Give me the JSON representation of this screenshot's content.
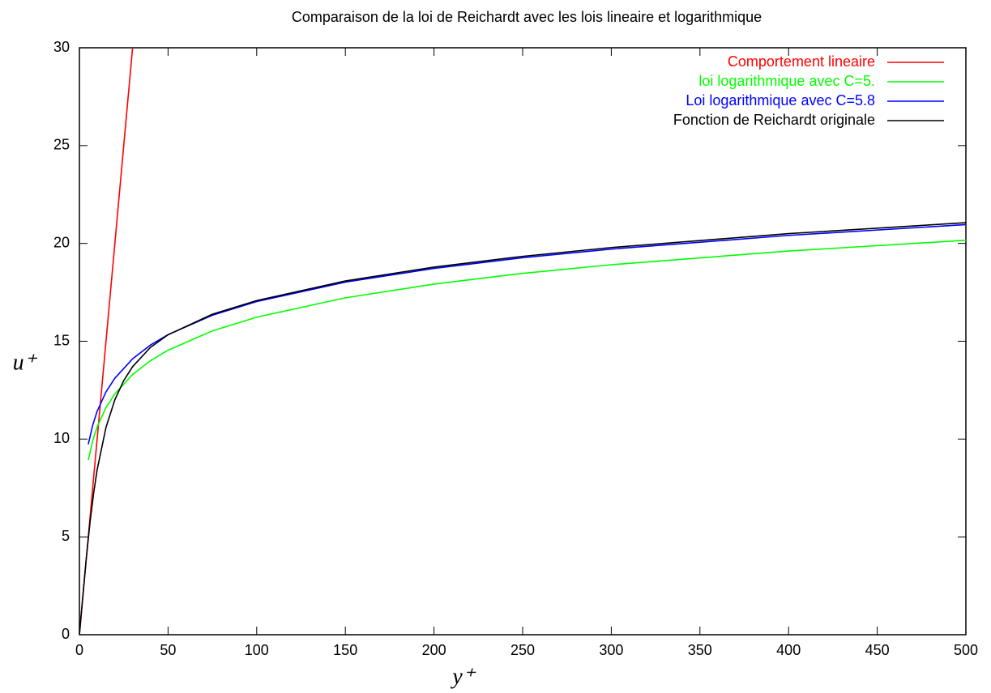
{
  "chart_data": {
    "type": "line",
    "title": "Comparaison de la loi de Reichardt avec les lois lineaire et logarithmique",
    "xlabel": "y⁺",
    "ylabel": "u⁺",
    "xlim": [
      0,
      500
    ],
    "ylim": [
      0,
      30
    ],
    "xticks": [
      0,
      50,
      100,
      150,
      200,
      250,
      300,
      350,
      400,
      450,
      500
    ],
    "yticks": [
      0,
      5,
      10,
      15,
      20,
      25,
      30
    ],
    "legend": "top-right",
    "series": [
      {
        "name": "Comportement lineaire",
        "color": "#ff0000",
        "x": [
          0,
          30
        ],
        "values": [
          0,
          30
        ]
      },
      {
        "name": "loi logarithmique avec C=5.",
        "color": "#00ff00",
        "x": [
          5,
          7.5,
          10,
          15,
          20,
          30,
          40,
          50,
          75,
          100,
          150,
          200,
          250,
          300,
          400,
          500
        ],
        "values": [
          8.93,
          9.91,
          10.62,
          11.61,
          12.31,
          13.3,
          14.0,
          14.54,
          15.53,
          16.23,
          17.22,
          17.92,
          18.47,
          18.91,
          19.61,
          20.16
        ]
      },
      {
        "name": "Loi logarithmique avec C=5.8",
        "color": "#0000ff",
        "x": [
          5,
          7.5,
          10,
          15,
          20,
          30,
          40,
          50,
          75,
          100,
          150,
          200,
          250,
          300,
          400,
          500
        ],
        "values": [
          9.73,
          10.71,
          11.42,
          12.41,
          13.11,
          14.1,
          14.8,
          15.34,
          16.33,
          17.03,
          18.02,
          18.72,
          19.27,
          19.71,
          20.41,
          20.96
        ]
      },
      {
        "name": "Fonction de Reichardt originale",
        "color": "#000000",
        "x": [
          0,
          2,
          4,
          6,
          8,
          10,
          15,
          20,
          25,
          30,
          40,
          50,
          75,
          100,
          150,
          200,
          250,
          300,
          400,
          500
        ],
        "values": [
          0,
          2.04,
          4.02,
          5.76,
          7.22,
          8.43,
          10.6,
          12.01,
          12.99,
          13.7,
          14.68,
          15.33,
          16.38,
          17.08,
          18.08,
          18.79,
          19.34,
          19.79,
          20.5,
          21.06
        ]
      }
    ]
  }
}
